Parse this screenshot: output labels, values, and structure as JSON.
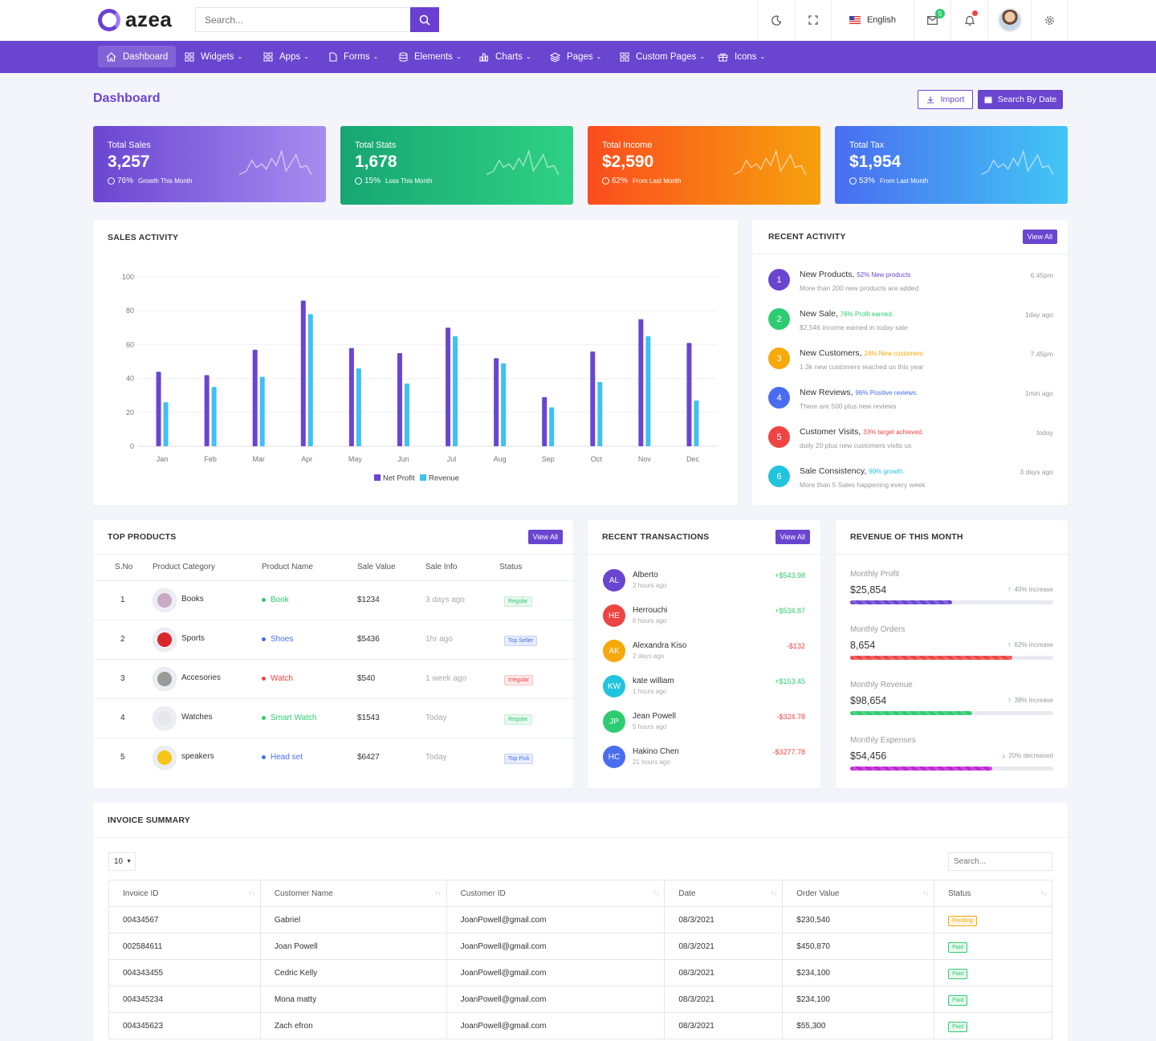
{
  "header": {
    "logo_text": "azea",
    "search_placeholder": "Search...",
    "language": "English",
    "mail_badge": "5"
  },
  "nav": {
    "items": [
      {
        "label": "Dashboard",
        "icon": "home-icon"
      },
      {
        "label": "Widgets",
        "icon": "grid-icon"
      },
      {
        "label": "Apps",
        "icon": "grid-icon"
      },
      {
        "label": "Forms",
        "icon": "file-icon"
      },
      {
        "label": "Elements",
        "icon": "database-icon"
      },
      {
        "label": "Charts",
        "icon": "bar-chart-icon"
      },
      {
        "label": "Pages",
        "icon": "layers-icon"
      },
      {
        "label": "Custom Pages",
        "icon": "grid-icon"
      },
      {
        "label": "Icons",
        "icon": "gift-icon"
      }
    ]
  },
  "page": {
    "title": "Dashboard",
    "import_label": "Import",
    "search_by_date_label": "Search By Date"
  },
  "stats": [
    {
      "label": "Total Sales",
      "value": "3,257",
      "percent": "76%",
      "note": "Growth This Month",
      "color_from": "#6b46d1",
      "color_to": "#a68cf0"
    },
    {
      "label": "Total Stats",
      "value": "1,678",
      "percent": "15%",
      "note": "Loss This Month",
      "color_from": "#17a673",
      "color_to": "#2fd184"
    },
    {
      "label": "Total Income",
      "value": "$2,590",
      "percent": "62%",
      "note": "From Last Month",
      "color_from": "#fb4d1e",
      "color_to": "#f6a10d"
    },
    {
      "label": "Total Tax",
      "value": "$1,954",
      "percent": "53%",
      "note": "From Last Month",
      "color_from": "#4a6df0",
      "color_to": "#41c6f5"
    }
  ],
  "sales_activity": {
    "title": "SALES ACTIVITY",
    "chart_data": {
      "type": "bar",
      "categories": [
        "Jan",
        "Feb",
        "Mar",
        "Apr",
        "May",
        "Jun",
        "Jul",
        "Aug",
        "Sep",
        "Oct",
        "Nov",
        "Dec"
      ],
      "series": [
        {
          "name": "Net Profit",
          "color": "#6a45d0",
          "values": [
            44,
            42,
            57,
            86,
            58,
            55,
            70,
            52,
            29,
            56,
            75,
            61
          ]
        },
        {
          "name": "Revenue",
          "color": "#3fc1f1",
          "values": [
            26,
            35,
            41,
            78,
            46,
            37,
            65,
            49,
            23,
            38,
            65,
            27
          ]
        }
      ],
      "yticks": [
        0,
        20,
        40,
        60,
        80,
        100
      ],
      "ylim": [
        0,
        100
      ],
      "grid": true,
      "legend": "bottom-center"
    }
  },
  "recent_activity": {
    "title": "RECENT ACTIVITY",
    "view_all": "View All",
    "items": [
      {
        "num": "1",
        "title": "New Products,",
        "highlight": "52% New products",
        "desc": "More than 200 new products are added",
        "time": "6:45pm",
        "color": "#6a45d0"
      },
      {
        "num": "2",
        "title": "New Sale,",
        "highlight": "76% Profit earned.",
        "desc": "$2,546 income earned in today sale",
        "time": "1day ago",
        "color": "#2ecc71"
      },
      {
        "num": "3",
        "title": "New Customers,",
        "highlight": "24% New customers",
        "desc": "1.3k new customers reached us this year",
        "time": "7.45pm",
        "color": "#f7a80b"
      },
      {
        "num": "4",
        "title": "New Reviews,",
        "highlight": "96% Positive reviews.",
        "desc": "There are 500 plus new reviews",
        "time": "1min ago",
        "color": "#4a6df0"
      },
      {
        "num": "5",
        "title": "Customer Visits,",
        "highlight": "33% target achieved.",
        "desc": "daily 20 plus new customers visits us",
        "time": "today",
        "color": "#ef4444"
      },
      {
        "num": "6",
        "title": "Sale Consistency,",
        "highlight": "90% growth.",
        "desc": "More than 5 Sales happening every week",
        "time": "3 days ago",
        "color": "#22c3dd"
      }
    ]
  },
  "top_products": {
    "title": "TOP PRODUCTS",
    "view_all": "View All",
    "columns": [
      "S.No",
      "Product Category",
      "Product Name",
      "Sale Value",
      "Sale Info",
      "Status"
    ],
    "rows": [
      {
        "sno": "1",
        "category": "Books",
        "name": "Book",
        "value": "$1234",
        "info": "3 days ago",
        "status": "Regular",
        "dot": "#2ecc71",
        "img": "#c9a9c4"
      },
      {
        "sno": "2",
        "category": "Sports",
        "name": "Shoes",
        "value": "$5436",
        "info": "1hr ago",
        "status": "Top Seller",
        "dot": "#4a6df0",
        "img": "#d9262a"
      },
      {
        "sno": "3",
        "category": "Accesories",
        "name": "Watch",
        "value": "$540",
        "info": "1 week ago",
        "status": "Irregular",
        "dot": "#ef4444",
        "img": "#9a9a9a"
      },
      {
        "sno": "4",
        "category": "Watches",
        "name": "Smart Watch",
        "value": "$1543",
        "info": "Today",
        "status": "Regular",
        "dot": "#2ecc71",
        "img": "#e8e8ec"
      },
      {
        "sno": "5",
        "category": "speakers",
        "name": "Head set",
        "value": "$6427",
        "info": "Today",
        "status": "Top Pick",
        "dot": "#4a6df0",
        "img": "#f5c518"
      }
    ]
  },
  "recent_transactions": {
    "title": "RECENT TRANSACTIONS",
    "view_all": "View All",
    "items": [
      {
        "initials": "AL",
        "name": "Alberto",
        "time": "2 hours ago",
        "amount": "+$543.98",
        "color": "#6a45d0",
        "positive": true
      },
      {
        "initials": "HE",
        "name": "Herrouchi",
        "time": "6 hours ago",
        "amount": "+$534.87",
        "color": "#ef4444",
        "positive": true
      },
      {
        "initials": "AK",
        "name": "Alexandra Kiso",
        "time": "2 days ago",
        "amount": "-$132",
        "color": "#f7a80b",
        "positive": false
      },
      {
        "initials": "KW",
        "name": "kate william",
        "time": "1 hours ago",
        "amount": "+$153.45",
        "color": "#22c3dd",
        "positive": true
      },
      {
        "initials": "JP",
        "name": "Jean Powell",
        "time": "5 hours ago",
        "amount": "-$324.78",
        "color": "#2ecc71",
        "positive": false
      },
      {
        "initials": "HC",
        "name": "Hakino Chen",
        "time": "21 hours ago",
        "amount": "-$3277.78",
        "color": "#4a6df0",
        "positive": false
      }
    ]
  },
  "revenue": {
    "title": "REVENUE OF THIS MONTH",
    "items": [
      {
        "label": "Monthly Profit",
        "value": "$25,854",
        "change": "40% increase",
        "up": true,
        "fill": 0.5,
        "color": "#6a45d0"
      },
      {
        "label": "Monthly Orders",
        "value": "8,654",
        "change": "62% increase",
        "up": true,
        "fill": 0.8,
        "color": "#ef4444"
      },
      {
        "label": "Monthly Revenue",
        "value": "$98,654",
        "change": "38% increase",
        "up": true,
        "fill": 0.6,
        "color": "#2ecc71"
      },
      {
        "label": "Monthly Expenses",
        "value": "$54,456",
        "change": "20% decreased",
        "up": false,
        "fill": 0.7,
        "color": "#c026d3"
      }
    ]
  },
  "invoice": {
    "title": "INVOICE SUMMARY",
    "page_size": "10",
    "search_placeholder": "Search...",
    "columns": [
      "Invoice ID",
      "Customer Name",
      "Customer ID",
      "Date",
      "Order Value",
      "Status"
    ],
    "rows": [
      {
        "id": "00434567",
        "name": "Gabriel",
        "cid": "JoanPowell@gmail.com",
        "date": "08/3/2021",
        "value": "$230,540",
        "status": "Pending"
      },
      {
        "id": "002584611",
        "name": "Joan Powell",
        "cid": "JoanPowell@gmail.com",
        "date": "08/3/2021",
        "value": "$450,870",
        "status": "Paid"
      },
      {
        "id": "004343455",
        "name": "Cedric Kelly",
        "cid": "JoanPowell@gmail.com",
        "date": "08/3/2021",
        "value": "$234,100",
        "status": "Paid"
      },
      {
        "id": "004345234",
        "name": "Mona matty",
        "cid": "JoanPowell@gmail.com",
        "date": "08/3/2021",
        "value": "$234,100",
        "status": "Paid"
      },
      {
        "id": "004345623",
        "name": "Zach efron",
        "cid": "JoanPowell@gmail.com",
        "date": "08/3/2021",
        "value": "$55,300",
        "status": "Paid"
      }
    ]
  }
}
